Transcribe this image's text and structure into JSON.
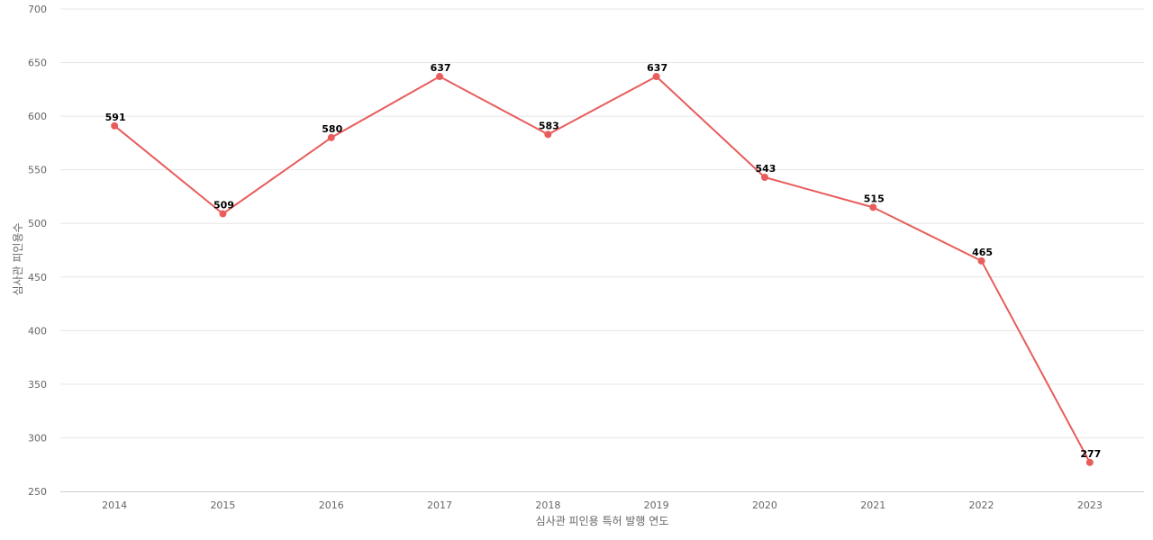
{
  "chart_data": {
    "type": "line",
    "title": "",
    "xlabel": "심사관 피인용 특허 발행 연도",
    "ylabel": "심사관 피인용수",
    "categories": [
      "2014",
      "2015",
      "2016",
      "2017",
      "2018",
      "2019",
      "2020",
      "2021",
      "2022",
      "2023"
    ],
    "series": [
      {
        "values": [
          591,
          509,
          580,
          637,
          583,
          637,
          543,
          515,
          465,
          277
        ],
        "color": "#e85c5c"
      }
    ],
    "ylim": [
      250,
      700
    ],
    "yticks": [
      250,
      300,
      350,
      400,
      450,
      500,
      550,
      600,
      650,
      700
    ],
    "grid": true,
    "data_labels": true
  }
}
